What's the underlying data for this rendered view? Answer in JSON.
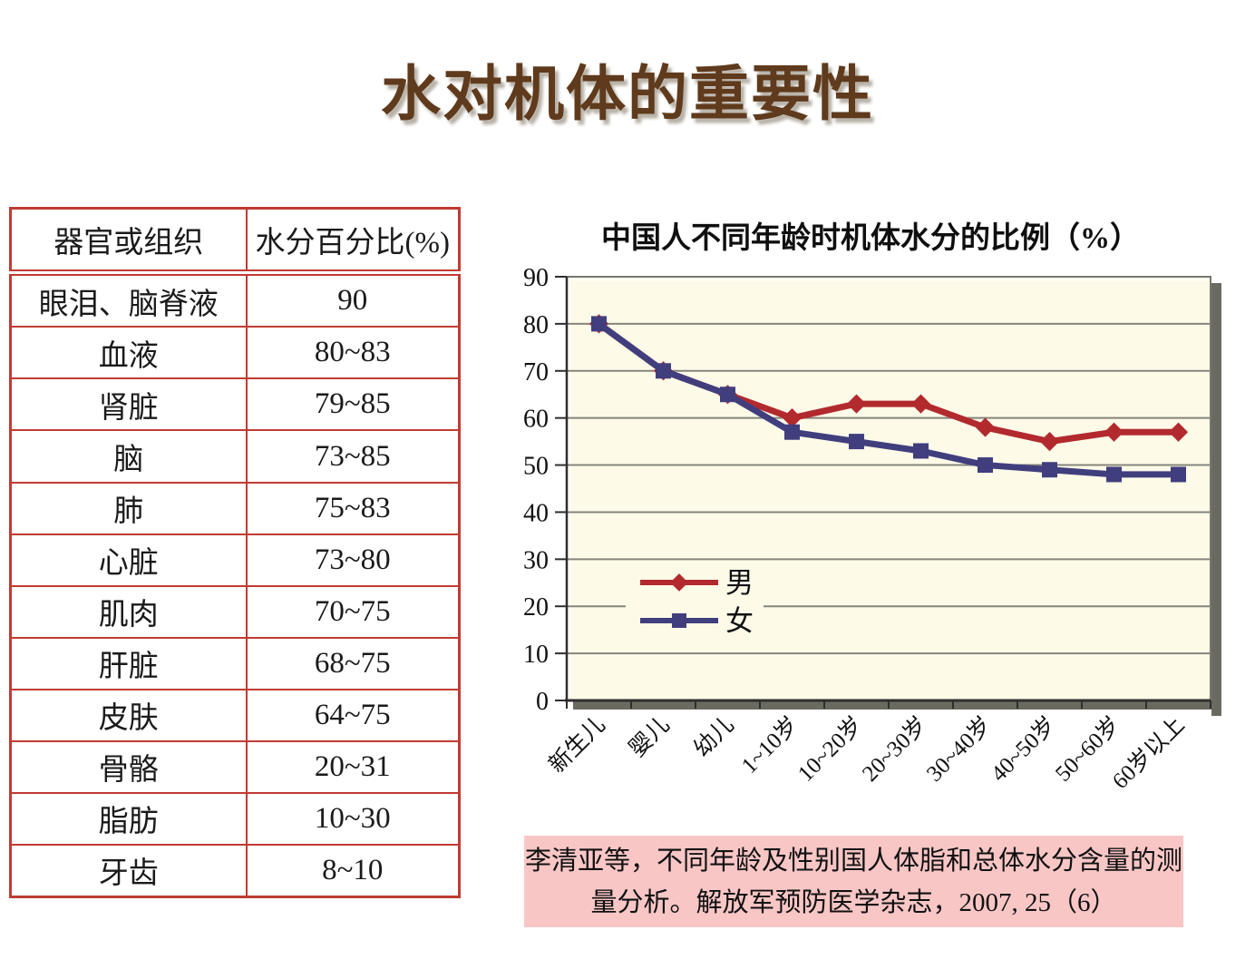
{
  "slide": {
    "title": "水对机体的重要性",
    "title_color": "#5f3a1c"
  },
  "table": {
    "headers": [
      "器官或组织",
      "水分百分比(%)"
    ],
    "rows": [
      {
        "organ": "眼泪、脑脊液",
        "percent": "90"
      },
      {
        "organ": "血液",
        "percent": "80~83"
      },
      {
        "organ": "肾脏",
        "percent": "79~85"
      },
      {
        "organ": "脑",
        "percent": "73~85"
      },
      {
        "organ": "肺",
        "percent": "75~83"
      },
      {
        "organ": "心脏",
        "percent": "73~80"
      },
      {
        "organ": "肌肉",
        "percent": "70~75"
      },
      {
        "organ": "肝脏",
        "percent": "68~75"
      },
      {
        "organ": "皮肤",
        "percent": "64~75"
      },
      {
        "organ": "骨骼",
        "percent": "20~31"
      },
      {
        "organ": "脂肪",
        "percent": "10~30"
      },
      {
        "organ": "牙齿",
        "percent": "8~10"
      }
    ],
    "border_color": "#c03b33"
  },
  "chart_data": {
    "type": "line",
    "title": "中国人不同年龄时机体水分的比例（%）",
    "categories": [
      "新生儿",
      "婴儿",
      "幼儿",
      "1~10岁",
      "10~20岁",
      "20~30岁",
      "30~40岁",
      "40~50岁",
      "50~60岁",
      "60岁以上"
    ],
    "series": [
      {
        "name": "男",
        "marker": "diamond",
        "color": "#b22a2e",
        "values": [
          80,
          70,
          65,
          60,
          63,
          63,
          58,
          55,
          57,
          57
        ]
      },
      {
        "name": "女",
        "marker": "square",
        "color": "#413e7e",
        "values": [
          80,
          70,
          65,
          57,
          55,
          53,
          50,
          49,
          48,
          48
        ]
      }
    ],
    "xlabel": "",
    "ylabel": "",
    "ylim": [
      0,
      90
    ],
    "ytick_step": 10,
    "grid": "horizontal",
    "legend_position": "inside-left",
    "plot_bg": "#fdfae8",
    "gridline_color": "#85857b"
  },
  "citation": {
    "line1": "李清亚等，不同年龄及性别国人体脂和总体水分含量的测",
    "line2": "量分析。解放军预防医学杂志，2007, 25（6）",
    "bg": "#f9c6c6"
  }
}
